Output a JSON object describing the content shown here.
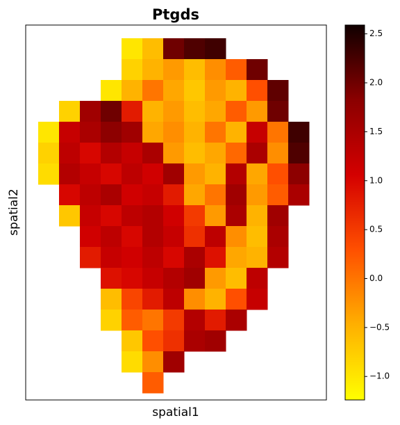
{
  "chart_data": {
    "type": "heatmap",
    "title": "Ptgds",
    "x_label": "spatial1",
    "y_label": "spatial2",
    "x": [
      33,
      63,
      93,
      123,
      153,
      183,
      213,
      243,
      273,
      303,
      333,
      363,
      393
    ],
    "y": [
      505,
      475,
      445,
      415,
      385,
      355,
      325,
      295,
      265,
      235,
      205,
      175,
      145,
      115,
      85,
      55,
      25
    ],
    "xlim": [
      0,
      433
    ],
    "ylim": [
      0,
      539
    ],
    "values": [
      [
        null,
        null,
        null,
        null,
        -1.0,
        -0.6,
        2.0,
        2.2,
        2.3,
        null,
        null,
        null,
        null
      ],
      [
        null,
        null,
        null,
        null,
        -0.8,
        -0.5,
        -0.3,
        -0.6,
        -0.2,
        0.2,
        2.0,
        null,
        null
      ],
      [
        null,
        null,
        null,
        -1.0,
        -0.5,
        0.0,
        -0.4,
        -0.7,
        -0.3,
        -0.5,
        0.3,
        2.1,
        null
      ],
      [
        null,
        -0.8,
        1.6,
        2.0,
        0.8,
        -0.5,
        -0.3,
        -0.6,
        -0.4,
        0.2,
        -0.3,
        2.0,
        null
      ],
      [
        -1.0,
        1.2,
        1.5,
        1.8,
        1.6,
        -0.4,
        -0.2,
        -0.5,
        0.0,
        -0.5,
        1.2,
        0.0,
        2.3
      ],
      [
        -0.8,
        1.3,
        1.0,
        1.4,
        1.2,
        1.5,
        -0.3,
        -0.6,
        -0.4,
        0.1,
        1.5,
        -0.2,
        2.2
      ],
      [
        -0.9,
        1.4,
        1.2,
        1.0,
        1.3,
        1.1,
        1.6,
        -0.3,
        -0.5,
        1.4,
        -0.4,
        0.3,
        1.8
      ],
      [
        null,
        1.0,
        1.3,
        1.5,
        1.1,
        1.2,
        0.8,
        -0.4,
        0.0,
        1.6,
        -0.3,
        0.2,
        1.5
      ],
      [
        null,
        -0.7,
        1.2,
        1.0,
        1.3,
        1.4,
        1.1,
        0.5,
        -0.3,
        1.5,
        -0.5,
        1.6,
        null
      ],
      [
        null,
        null,
        1.1,
        1.3,
        1.0,
        1.4,
        1.2,
        0.6,
        1.3,
        -0.2,
        -0.6,
        1.5,
        null
      ],
      [
        null,
        null,
        0.8,
        1.2,
        1.1,
        1.3,
        1.0,
        1.5,
        0.9,
        -0.4,
        -0.5,
        1.4,
        null
      ],
      [
        null,
        null,
        null,
        0.9,
        1.0,
        1.2,
        1.4,
        1.6,
        -0.3,
        -0.6,
        1.3,
        null,
        null
      ],
      [
        null,
        null,
        null,
        -0.6,
        0.4,
        0.8,
        1.3,
        -0.2,
        -0.5,
        0.3,
        1.2,
        null,
        null
      ],
      [
        null,
        null,
        null,
        -0.8,
        0.2,
        0.0,
        0.5,
        1.4,
        0.8,
        1.5,
        null,
        null,
        null
      ],
      [
        null,
        null,
        null,
        null,
        -0.7,
        0.3,
        0.6,
        1.5,
        1.6,
        null,
        null,
        null,
        null
      ],
      [
        null,
        null,
        null,
        null,
        -0.9,
        -0.2,
        1.6,
        null,
        null,
        null,
        null,
        null,
        null
      ],
      [
        null,
        null,
        null,
        null,
        null,
        0.2,
        null,
        null,
        null,
        null,
        null,
        null,
        null
      ]
    ],
    "colormap": [
      "#ffff00",
      "#ffb000",
      "#ff5000",
      "#d40000",
      "#8b0000",
      "#100000"
    ],
    "clim": [
      -1.24,
      2.59
    ],
    "cticks": [
      {
        "value": -1.0,
        "label": "−1.0"
      },
      {
        "value": -0.5,
        "label": "−0.5"
      },
      {
        "value": 0.0,
        "label": "0.0"
      },
      {
        "value": 0.5,
        "label": "0.5"
      },
      {
        "value": 1.0,
        "label": "1.0"
      },
      {
        "value": 1.5,
        "label": "1.5"
      },
      {
        "value": 2.0,
        "label": "2.0"
      },
      {
        "value": 2.5,
        "label": "2.5"
      }
    ]
  }
}
